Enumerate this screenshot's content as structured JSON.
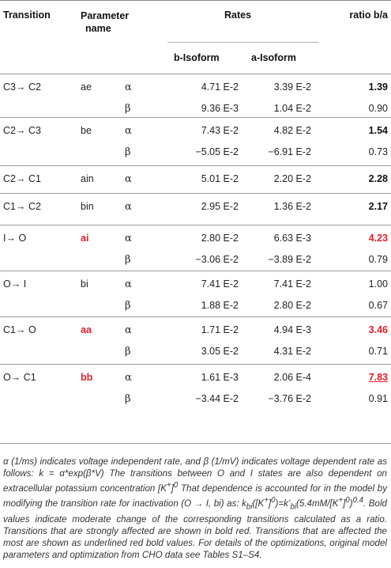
{
  "header": {
    "transition": "Transition",
    "parameter_name_line1": "Parameter",
    "parameter_name_line2": "name",
    "rates": "Rates",
    "ratio": "ratio b/a",
    "b_isoform": "b-Isoform",
    "a_isoform": "a-Isoform"
  },
  "colors": {
    "red": "#e8202a",
    "rule": "#9a9a9a"
  },
  "groups": [
    {
      "transition": "C3→ C2",
      "param": "ae",
      "param_style": "normal",
      "rows": [
        {
          "greek": "α",
          "b": "4.71 E-2",
          "a": "3.39 E-2",
          "ratio": "1.39",
          "ratio_style": "bold"
        },
        {
          "greek": "β",
          "b": "9.36 E-3",
          "a": "1.04 E-2",
          "ratio": "0.90",
          "ratio_style": "normal"
        }
      ]
    },
    {
      "transition": "C2→ C3",
      "param": "be",
      "param_style": "normal",
      "rows": [
        {
          "greek": "α",
          "b": "7.43 E-2",
          "a": "4.82 E-2",
          "ratio": "1.54",
          "ratio_style": "bold"
        },
        {
          "greek": "β",
          "b": "−5.05 E-2",
          "a": "−6.91 E-2",
          "ratio": "0.73",
          "ratio_style": "normal"
        }
      ]
    },
    {
      "transition": "C2→ C1",
      "param": "ain",
      "param_style": "normal",
      "rows": [
        {
          "greek": "α",
          "b": "5.01 E-2",
          "a": "2.20 E-2",
          "ratio": "2.28",
          "ratio_style": "bold"
        }
      ]
    },
    {
      "transition": "C1→ C2",
      "param": "bin",
      "param_style": "normal",
      "rows": [
        {
          "greek": "α",
          "b": "2.95 E-2",
          "a": "1.36 E-2",
          "ratio": "2.17",
          "ratio_style": "bold"
        }
      ]
    },
    {
      "transition": "I→ O",
      "param": "ai",
      "param_style": "red",
      "rows": [
        {
          "greek": "α",
          "b": "2.80 E-2",
          "a": "6.63 E-3",
          "ratio": "4.23",
          "ratio_style": "red"
        },
        {
          "greek": "β",
          "b": "−3.06 E-2",
          "a": "−3.89 E-2",
          "ratio": "0.79",
          "ratio_style": "normal"
        }
      ]
    },
    {
      "transition": "O→ I",
      "param": "bi",
      "param_style": "normal",
      "rows": [
        {
          "greek": "α",
          "b": "7.41 E-2",
          "a": "7.41 E-2",
          "ratio": "1.00",
          "ratio_style": "normal"
        },
        {
          "greek": "β",
          "b": "1.88 E-2",
          "a": "2.80 E-2",
          "ratio": "0.67",
          "ratio_style": "normal"
        }
      ]
    },
    {
      "transition": "C1→ O",
      "param": "aa",
      "param_style": "red",
      "rows": [
        {
          "greek": "α",
          "b": "1.71 E-2",
          "a": "4.94 E-3",
          "ratio": "3.46",
          "ratio_style": "red"
        },
        {
          "greek": "β",
          "b": "3.05 E-2",
          "a": "4.31 E-2",
          "ratio": "0.71",
          "ratio_style": "normal"
        }
      ]
    },
    {
      "transition": "O→ C1",
      "param": "bb",
      "param_style": "red",
      "rows": [
        {
          "greek": "α",
          "b": "1.61 E-3",
          "a": "2.06 E-4",
          "ratio": "7.83",
          "ratio_style": "red-underline"
        },
        {
          "greek": "β",
          "b": "−3.44 E-2",
          "a": "−3.76 E-2",
          "ratio": "0.91",
          "ratio_style": "normal"
        }
      ]
    }
  ],
  "footnote": "α (1/ms) indicates voltage independent rate, and β (1/mV) indicates voltage dependent rate as follows: k = α*exp(β*V) The transitions between O and I states are also dependent on extracellular potassium concentration [K+]0 That dependence is accounted for in the model by modifying the transition rate for inactivation (O → I, bi) as: kbi([K+]0)=k’bi(5.4mM/[K+]0)0.4. Bold values indicate moderate change of the corresponding transitions calculated as a ratio. Transitions that are strongly affected are shown in bold red. Transitions that are affected the most are shown as underlined red bold values. For details of the optimizations, original model parameters and optimization from CHO data see Tables S1–S4."
}
